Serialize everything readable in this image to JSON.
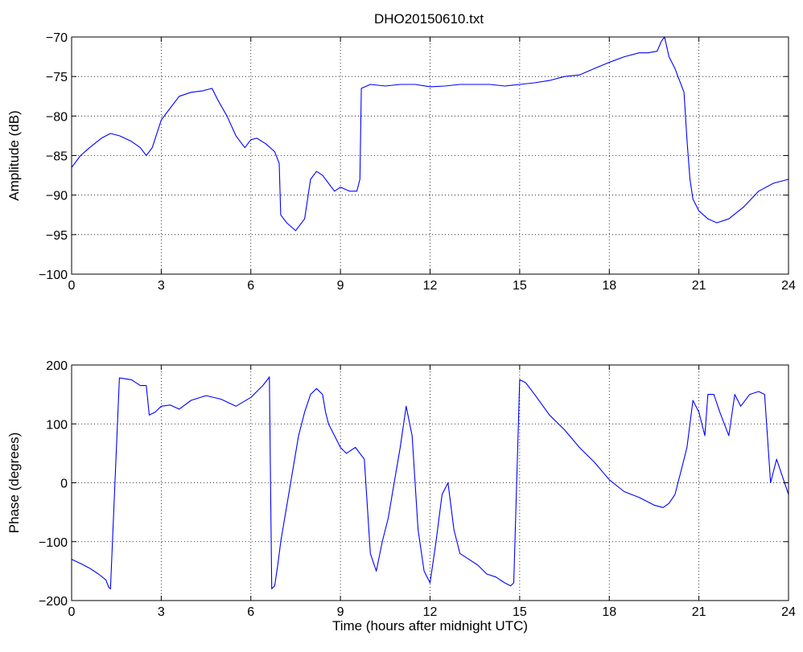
{
  "figure": {
    "title": "DHO20150610.txt",
    "line_color": "#0000ff",
    "grid_color": "#000000"
  },
  "chart_data": [
    {
      "type": "line",
      "title": "DHO20150610.txt",
      "xlabel": "",
      "ylabel": "Amplitude (dB)",
      "xlim": [
        0,
        24
      ],
      "ylim": [
        -100,
        -70
      ],
      "xticks": [
        0,
        3,
        6,
        9,
        12,
        15,
        18,
        21,
        24
      ],
      "yticks": [
        -100,
        -95,
        -90,
        -85,
        -80,
        -75,
        -70
      ],
      "xtick_labels": [
        "0",
        "3",
        "6",
        "9",
        "12",
        "15",
        "18",
        "21",
        "24"
      ],
      "ytick_labels": [
        "−100",
        "−95",
        "−90",
        "−85",
        "−80",
        "−75",
        "−70"
      ],
      "grid": true,
      "series": [
        {
          "x": [
            0,
            0.3,
            0.6,
            1.0,
            1.3,
            1.6,
            2.0,
            2.3,
            2.5,
            2.7,
            3.0,
            3.3,
            3.6,
            4.0,
            4.4,
            4.7,
            4.9,
            5.2,
            5.5,
            5.8,
            6.0,
            6.2,
            6.5,
            6.8,
            6.95,
            7.0,
            7.2,
            7.5,
            7.8,
            8.0,
            8.2,
            8.4,
            8.6,
            8.8,
            9.0,
            9.3,
            9.55,
            9.65,
            9.7,
            10.0,
            10.5,
            11.0,
            11.5,
            12.0,
            12.5,
            13.0,
            13.5,
            14.0,
            14.5,
            15.0,
            15.5,
            16.0,
            16.5,
            17.0,
            17.5,
            18.0,
            18.5,
            19.0,
            19.3,
            19.6,
            19.75,
            19.85,
            20.0,
            20.2,
            20.5,
            20.6,
            20.7,
            20.8,
            21.0,
            21.3,
            21.6,
            22.0,
            22.5,
            23.0,
            23.5,
            24.0
          ],
          "y": [
            -86.5,
            -85.0,
            -84.0,
            -82.8,
            -82.2,
            -82.5,
            -83.2,
            -84.0,
            -85.0,
            -84.0,
            -80.5,
            -79.0,
            -77.5,
            -77.0,
            -76.8,
            -76.5,
            -78.0,
            -80.0,
            -82.5,
            -84.0,
            -83.0,
            -82.8,
            -83.5,
            -84.5,
            -86.0,
            -92.5,
            -93.5,
            -94.5,
            -93.0,
            -88.0,
            -87.0,
            -87.5,
            -88.5,
            -89.5,
            -89.0,
            -89.5,
            -89.5,
            -88.0,
            -76.5,
            -76.0,
            -76.2,
            -76.0,
            -76.0,
            -76.3,
            -76.2,
            -76.0,
            -76.0,
            -76.0,
            -76.2,
            -76.0,
            -75.8,
            -75.5,
            -75.0,
            -74.8,
            -74.0,
            -73.2,
            -72.5,
            -72.0,
            -72.0,
            -71.8,
            -70.5,
            -70.0,
            -72.5,
            -74.0,
            -77.0,
            -83.0,
            -88.0,
            -90.5,
            -92.0,
            -93.0,
            -93.5,
            -93.0,
            -91.5,
            -89.5,
            -88.5,
            -88.0
          ]
        }
      ]
    },
    {
      "type": "line",
      "title": "",
      "xlabel": "Time (hours after midnight UTC)",
      "ylabel": "Phase (degrees)",
      "xlim": [
        0,
        24
      ],
      "ylim": [
        -200,
        200
      ],
      "xticks": [
        0,
        3,
        6,
        9,
        12,
        15,
        18,
        21,
        24
      ],
      "yticks": [
        -200,
        -100,
        0,
        100,
        200
      ],
      "xtick_labels": [
        "0",
        "3",
        "6",
        "9",
        "12",
        "15",
        "18",
        "21",
        "24"
      ],
      "ytick_labels": [
        "−200",
        "−100",
        "0",
        "100",
        "200"
      ],
      "grid": true,
      "series": [
        {
          "x": [
            0,
            0.3,
            0.6,
            0.9,
            1.15,
            1.2,
            1.25,
            1.3,
            1.6,
            2.0,
            2.3,
            2.5,
            2.6,
            2.8,
            3.0,
            3.3,
            3.6,
            4.0,
            4.5,
            5.0,
            5.5,
            6.0,
            6.4,
            6.6,
            6.62,
            6.7,
            6.8,
            6.9,
            7.0,
            7.2,
            7.4,
            7.6,
            7.8,
            8.0,
            8.2,
            8.4,
            8.5,
            8.6,
            8.8,
            9.0,
            9.2,
            9.5,
            9.8,
            10.0,
            10.2,
            10.4,
            10.6,
            10.8,
            11.0,
            11.2,
            11.4,
            11.6,
            11.8,
            12.0,
            12.2,
            12.4,
            12.6,
            12.8,
            13.0,
            13.3,
            13.6,
            13.9,
            14.2,
            14.5,
            14.7,
            14.8,
            15.0,
            15.2,
            15.5,
            16.0,
            16.5,
            17.0,
            17.5,
            18.0,
            18.5,
            19.0,
            19.5,
            19.8,
            20.0,
            20.2,
            20.4,
            20.6,
            20.8,
            21.0,
            21.2,
            21.3,
            21.5,
            21.7,
            22.0,
            22.2,
            22.4,
            22.7,
            23.0,
            23.2,
            23.4,
            23.6,
            23.8,
            24.0
          ],
          "y": [
            -130,
            -137,
            -145,
            -155,
            -165,
            -172,
            -178,
            -180,
            178,
            175,
            165,
            165,
            115,
            120,
            130,
            132,
            125,
            140,
            148,
            142,
            130,
            145,
            165,
            178,
            180,
            -180,
            -175,
            -140,
            -100,
            -40,
            20,
            80,
            120,
            150,
            160,
            150,
            120,
            100,
            80,
            60,
            50,
            60,
            40,
            -120,
            -150,
            -100,
            -60,
            0,
            60,
            130,
            80,
            -80,
            -150,
            -170,
            -100,
            -20,
            0,
            -80,
            -120,
            -130,
            -140,
            -155,
            -160,
            -170,
            -175,
            -170,
            175,
            170,
            150,
            115,
            90,
            60,
            35,
            5,
            -15,
            -25,
            -38,
            -42,
            -35,
            -20,
            20,
            60,
            140,
            120,
            80,
            150,
            150,
            120,
            80,
            150,
            130,
            150,
            155,
            150,
            0,
            40,
            10,
            -20
          ]
        }
      ]
    }
  ]
}
